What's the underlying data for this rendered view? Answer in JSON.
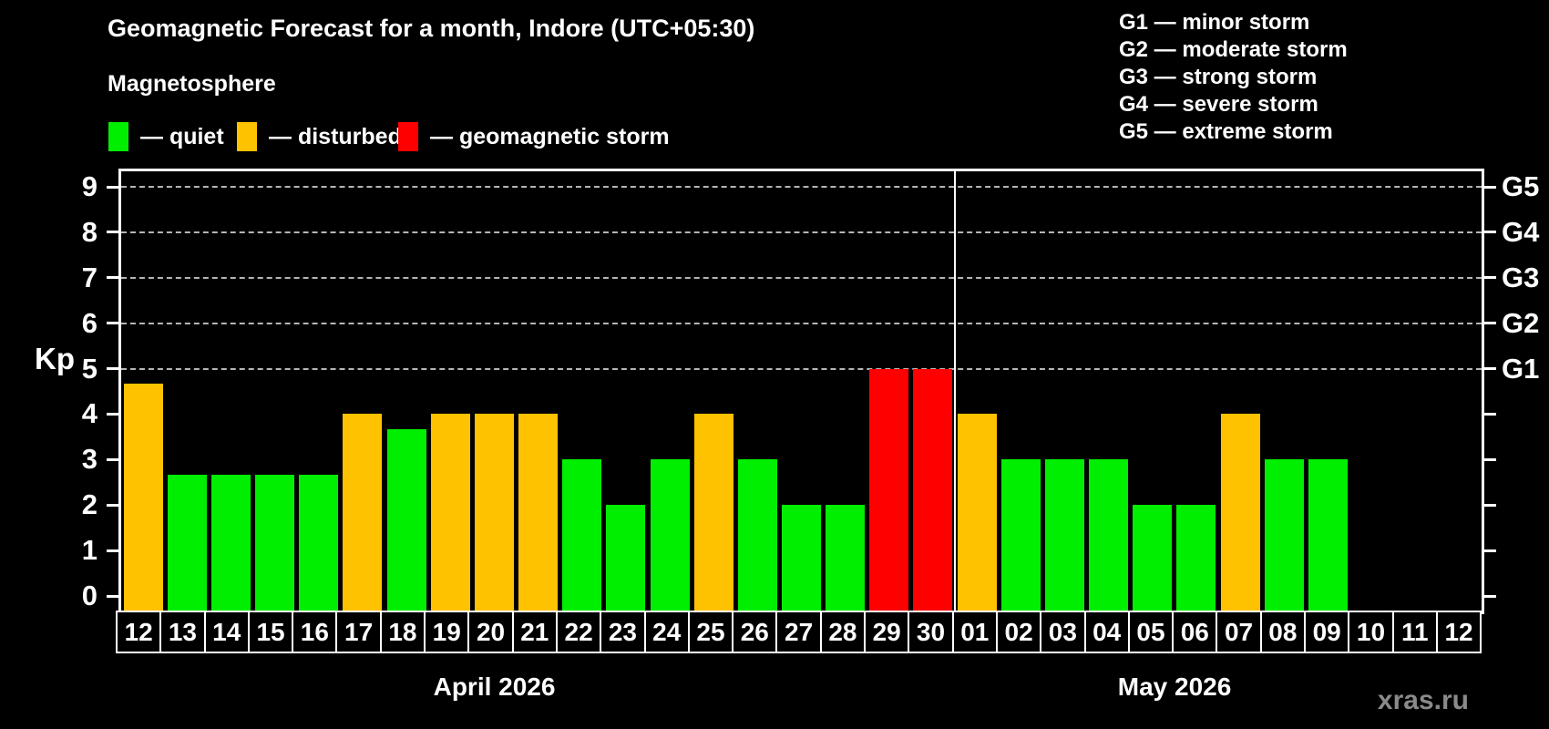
{
  "watermark": "xras.ru",
  "legend": {
    "title": "Magnetosphere",
    "items": [
      {
        "status": "quiet",
        "label": "— quiet",
        "color": "#00ee00"
      },
      {
        "status": "disturbed",
        "label": "— disturbed",
        "color": "#ffc200"
      },
      {
        "status": "storm",
        "label": "— geomagnetic storm",
        "color": "#ff0000"
      }
    ]
  },
  "storm_scale": [
    "G1 — minor storm",
    "G2 — moderate storm",
    "G3 — strong storm",
    "G4 — severe storm",
    "G5 — extreme storm"
  ],
  "chart_data": {
    "type": "bar",
    "title": "Geomagnetic Forecast for a month, Indore (UTC+05:30)",
    "ylabel": "Kp",
    "ylim": [
      0,
      9
    ],
    "yticks": [
      0,
      1,
      2,
      3,
      4,
      5,
      6,
      7,
      8,
      9
    ],
    "gridlines_at": [
      5,
      6,
      7,
      8,
      9
    ],
    "grid": "dashed horizontal at Kp 5-9 only",
    "legend_position": "top",
    "right_axis": [
      {
        "kp": 5,
        "label": "G1"
      },
      {
        "kp": 6,
        "label": "G2"
      },
      {
        "kp": 7,
        "label": "G3"
      },
      {
        "kp": 8,
        "label": "G4"
      },
      {
        "kp": 9,
        "label": "G5"
      }
    ],
    "status_colors": {
      "quiet": "#00ee00",
      "disturbed": "#ffc200",
      "storm": "#ff0000"
    },
    "months": [
      {
        "label": "April 2026",
        "days": [
          "12",
          "13",
          "14",
          "15",
          "16",
          "17",
          "18",
          "19",
          "20",
          "21",
          "22",
          "23",
          "24",
          "25",
          "26",
          "27",
          "28",
          "29",
          "30"
        ],
        "values": [
          4.67,
          2.67,
          2.67,
          2.67,
          2.67,
          4,
          3.67,
          4,
          4,
          4,
          3,
          2,
          3,
          4,
          3,
          2,
          2,
          5,
          5
        ],
        "statuses": [
          "disturbed",
          "quiet",
          "quiet",
          "quiet",
          "quiet",
          "disturbed",
          "quiet",
          "disturbed",
          "disturbed",
          "disturbed",
          "quiet",
          "quiet",
          "quiet",
          "disturbed",
          "quiet",
          "quiet",
          "quiet",
          "storm",
          "storm"
        ]
      },
      {
        "label": "May 2026",
        "days": [
          "01",
          "02",
          "03",
          "04",
          "05",
          "06",
          "07",
          "08",
          "09",
          "10",
          "11",
          "12"
        ],
        "values": [
          4,
          3,
          3,
          3,
          2,
          2,
          4,
          3,
          3,
          null,
          null,
          null
        ],
        "statuses": [
          "disturbed",
          "quiet",
          "quiet",
          "quiet",
          "quiet",
          "quiet",
          "disturbed",
          "quiet",
          "quiet",
          null,
          null,
          null
        ]
      }
    ]
  }
}
